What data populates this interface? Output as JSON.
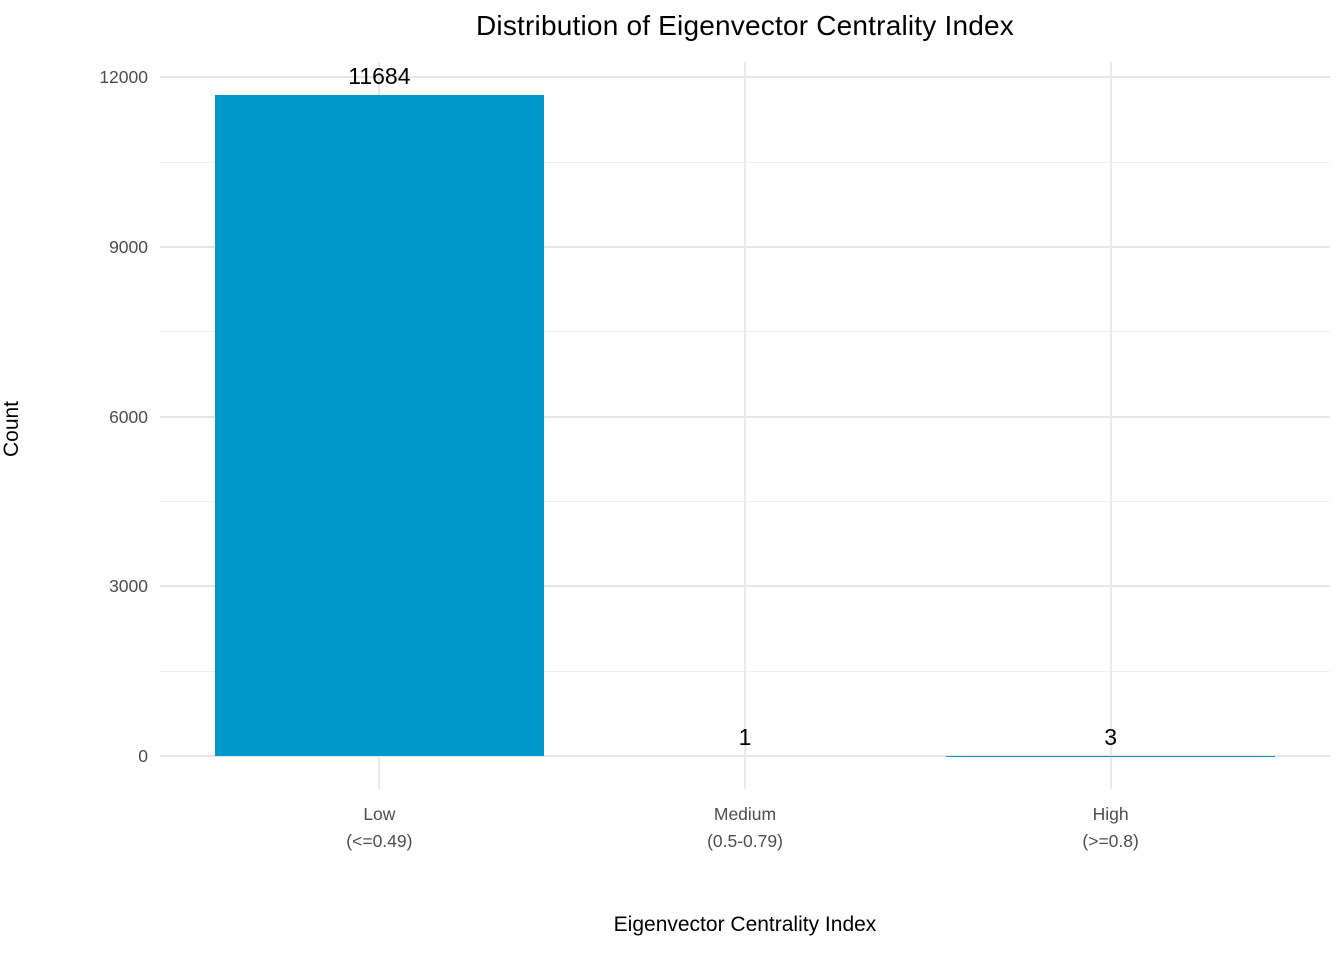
{
  "chart_data": {
    "type": "bar",
    "title": "Distribution of Eigenvector Centrality Index",
    "xlabel": "Eigenvector Centrality Index",
    "ylabel": "Count",
    "categories": [
      "Low",
      "Medium",
      "High"
    ],
    "category_sublabels": [
      "(<=0.49)",
      "(0.5-0.79)",
      "(>=0.8)"
    ],
    "values": [
      11684,
      1,
      3
    ],
    "bar_labels": [
      "11684",
      "1",
      "3"
    ],
    "yticks": [
      0,
      3000,
      6000,
      9000,
      12000
    ],
    "yticks_minor": [
      1500,
      4500,
      7500,
      10500
    ],
    "ylim": [
      -584,
      12268
    ],
    "bar_width_fraction": 0.9,
    "grid": "horizontal major+minor, vertical major at category centers",
    "legend": "none",
    "colors": {
      "bar": "#0099cc",
      "axis_text": "#4d4d4d",
      "title_text": "#000000",
      "grid_major": "#e6e6e6",
      "grid_minor": "#f0f0f0",
      "background": "#ffffff"
    }
  }
}
